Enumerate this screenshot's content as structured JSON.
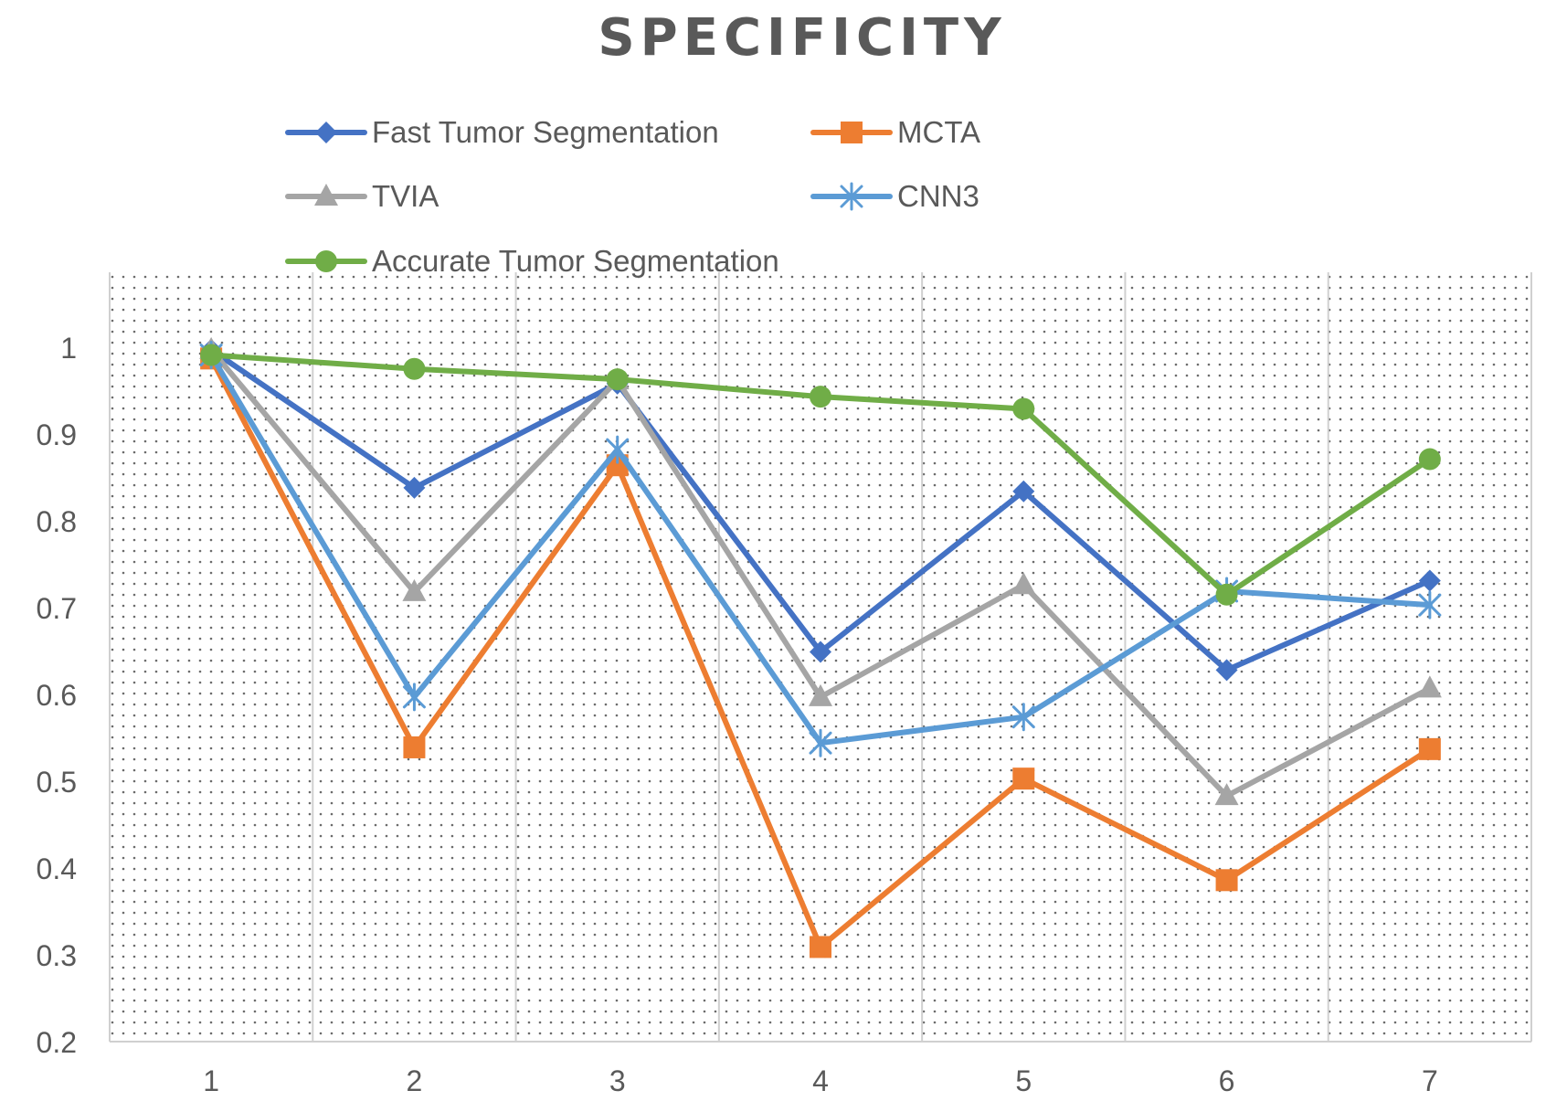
{
  "chart_data": {
    "type": "line",
    "title": "SPECIFICITY",
    "xlabel": "",
    "ylabel": "",
    "categories": [
      "1",
      "2",
      "3",
      "4",
      "5",
      "6",
      "7"
    ],
    "ylim": [
      0.2,
      1.0
    ],
    "yticks": [
      "0.2",
      "0.3",
      "0.4",
      "0.5",
      "0.6",
      "0.7",
      "0.8",
      "0.9",
      "1"
    ],
    "grid": {
      "vertical": true,
      "horizontal": false,
      "pattern": "dotted-fill"
    },
    "legend_position": "top",
    "series": [
      {
        "name": "Fast Tumor Segmentation",
        "color": "#4472C4",
        "marker": "diamond",
        "values": [
          0.997,
          0.838,
          0.958,
          0.649,
          0.834,
          0.628,
          0.731
        ]
      },
      {
        "name": "MCTA",
        "color": "#ED7D31",
        "marker": "square",
        "values": [
          0.987,
          0.539,
          0.864,
          0.309,
          0.503,
          0.386,
          0.537
        ]
      },
      {
        "name": "TVIA",
        "color": "#A5A5A5",
        "marker": "triangle",
        "values": [
          0.997,
          0.718,
          0.962,
          0.597,
          0.726,
          0.483,
          0.607
        ]
      },
      {
        "name": "CNN3",
        "color": "#5B9BD5",
        "marker": "star",
        "values": [
          0.991,
          0.597,
          0.882,
          0.544,
          0.574,
          0.719,
          0.703
        ]
      },
      {
        "name": "Accurate Tumor Segmentation",
        "color": "#70AD47",
        "marker": "circle",
        "values": [
          0.991,
          0.975,
          0.963,
          0.943,
          0.929,
          0.715,
          0.871
        ]
      }
    ]
  }
}
